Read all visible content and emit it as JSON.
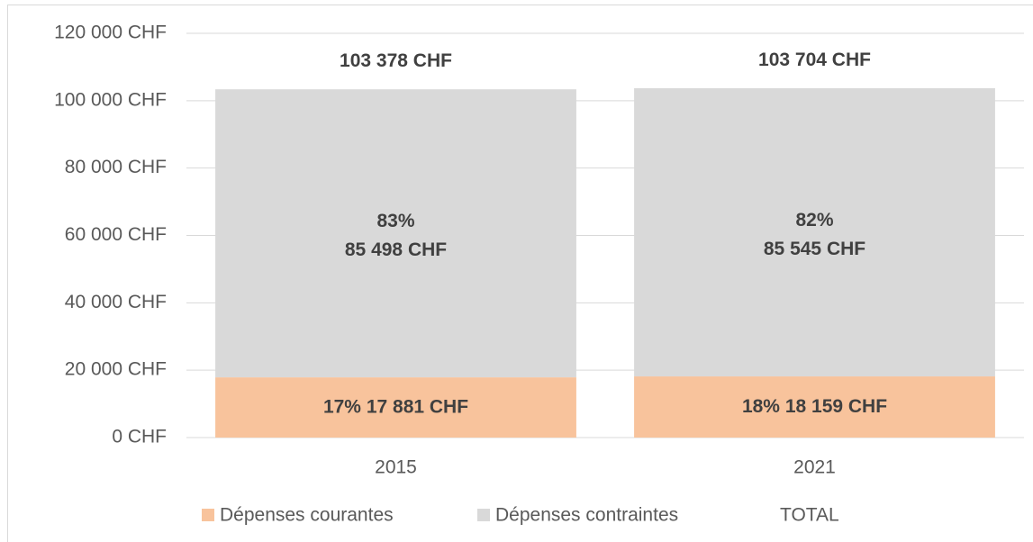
{
  "chart_data": {
    "type": "stacked_bar",
    "categories": [
      "2015",
      "2021"
    ],
    "series": [
      {
        "name": "Dépenses courantes",
        "color": "#f8c39c",
        "values": [
          17881,
          18159
        ],
        "value_labels": [
          [
            "17% 17 881 CHF"
          ],
          [
            "18% 18 159 CHF"
          ]
        ]
      },
      {
        "name": "Dépenses contraintes",
        "color": "#d9d9d9",
        "values": [
          85498,
          85545
        ],
        "value_labels": [
          [
            "83%",
            "85 498 CHF"
          ],
          [
            "82%",
            "85 545 CHF"
          ]
        ]
      },
      {
        "name": "TOTAL",
        "color": "none",
        "values": [
          103378,
          103704
        ],
        "value_labels": [
          [
            "103 378 CHF"
          ],
          [
            "103 704 CHF"
          ]
        ]
      }
    ],
    "ylim": [
      0,
      120000
    ],
    "yticks": [
      {
        "value": 0,
        "label": "0 CHF"
      },
      {
        "value": 20000,
        "label": "20 000 CHF"
      },
      {
        "value": 40000,
        "label": "40 000 CHF"
      },
      {
        "value": 60000,
        "label": "60 000 CHF"
      },
      {
        "value": 80000,
        "label": "80 000 CHF"
      },
      {
        "value": 100000,
        "label": "100 000 CHF"
      },
      {
        "value": 120000,
        "label": "120 000 CHF"
      }
    ],
    "grid": true,
    "legend": "bottom"
  }
}
